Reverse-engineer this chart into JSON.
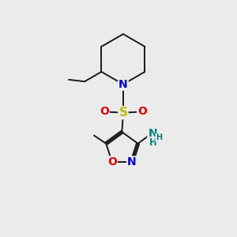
{
  "bg_color": "#ebebeb",
  "fig_size": [
    3.0,
    3.0
  ],
  "dpi": 100,
  "atom_colors": {
    "C": "#000000",
    "N": "#0000cc",
    "O": "#dd0000",
    "S": "#bbbb00",
    "NH2_N": "#008080",
    "NH2_H": "#008080"
  },
  "bond_color": "#1a1a1a",
  "bond_width": 1.4,
  "font_size_atom": 10,
  "font_size_small": 8.5
}
